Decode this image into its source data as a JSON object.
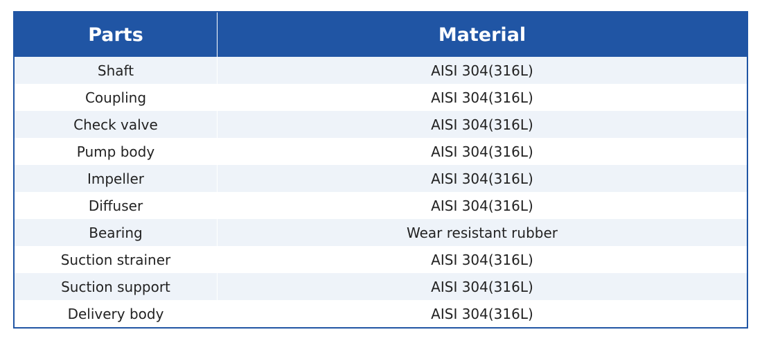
{
  "table": {
    "header": [
      "Parts",
      "Material"
    ],
    "rows": [
      [
        "Shaft",
        "AISI 304(316L)"
      ],
      [
        "Coupling",
        "AISI 304(316L)"
      ],
      [
        "Check valve",
        "AISI 304(316L)"
      ],
      [
        "Pump body",
        "AISI 304(316L)"
      ],
      [
        "Impeller",
        "AISI 304(316L)"
      ],
      [
        "Diffuser",
        "AISI 304(316L)"
      ],
      [
        "Bearing",
        "Wear resistant rubber"
      ],
      [
        "Suction strainer",
        "AISI 304(316L)"
      ],
      [
        "Suction support",
        "AISI 304(316L)"
      ],
      [
        "Delivery body",
        "AISI 304(316L)"
      ]
    ]
  }
}
